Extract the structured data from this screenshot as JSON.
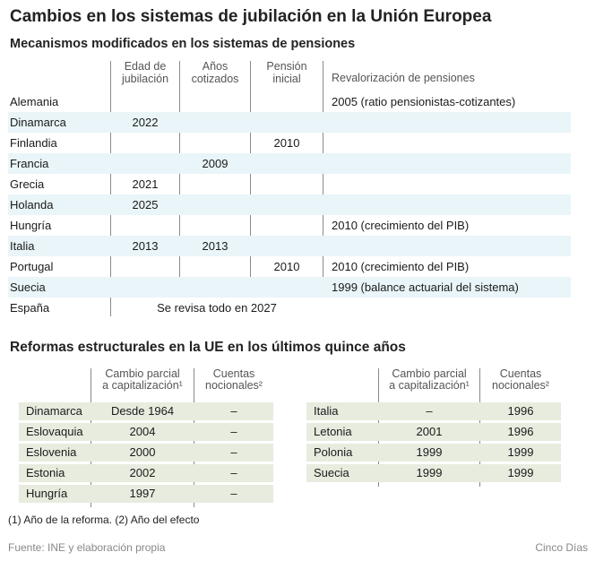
{
  "title": "Cambios en los sistemas de jubilación en la Unión Europea",
  "section1": {
    "title": "Mecanismos modificados en los sistemas de pensiones",
    "headers": {
      "edad": "Edad de\njubilación",
      "anos": "Años\ncotizados",
      "pension": "Pensión\ninicial",
      "reval": "Revalorización de pensiones"
    },
    "rows": [
      {
        "country": "Alemania",
        "edad": "",
        "anos": "",
        "pension": "",
        "reval": "2005 (ratio pensionistas-cotizantes)"
      },
      {
        "country": "Dinamarca",
        "edad": "2022",
        "anos": "",
        "pension": "",
        "reval": ""
      },
      {
        "country": "Finlandia",
        "edad": "",
        "anos": "",
        "pension": "2010",
        "reval": ""
      },
      {
        "country": "Francia",
        "edad": "",
        "anos": "2009",
        "pension": "",
        "reval": ""
      },
      {
        "country": "Grecia",
        "edad": "2021",
        "anos": "",
        "pension": "",
        "reval": ""
      },
      {
        "country": "Holanda",
        "edad": "2025",
        "anos": "",
        "pension": "",
        "reval": ""
      },
      {
        "country": "Hungría",
        "edad": "",
        "anos": "",
        "pension": "",
        "reval": "2010 (crecimiento del PIB)"
      },
      {
        "country": "Italia",
        "edad": "2013",
        "anos": "2013",
        "pension": "",
        "reval": ""
      },
      {
        "country": "Portugal",
        "edad": "",
        "anos": "",
        "pension": "2010",
        "reval": "2010 (crecimiento del PIB)"
      },
      {
        "country": "Suecia",
        "edad": "",
        "anos": "",
        "pension": "",
        "reval": "1999 (balance actuarial del sistema)"
      }
    ],
    "spain": {
      "country": "España",
      "note": "Se revisa todo en 2027"
    }
  },
  "section2": {
    "title": "Reformas estructurales en la UE en los últimos quince años",
    "headers": {
      "capitalizacion": "Cambio parcial\na capitalización¹",
      "nocionales": "Cuentas\nnocionales²"
    },
    "left": [
      {
        "country": "Dinamarca",
        "cap": "Desde 1964",
        "noc": "–"
      },
      {
        "country": "Eslovaquia",
        "cap": "2004",
        "noc": "–"
      },
      {
        "country": "Eslovenia",
        "cap": "2000",
        "noc": "–"
      },
      {
        "country": "Estonia",
        "cap": "2002",
        "noc": "–"
      },
      {
        "country": "Hungría",
        "cap": "1997",
        "noc": "–"
      }
    ],
    "right": [
      {
        "country": "Italia",
        "cap": "–",
        "noc": "1996"
      },
      {
        "country": "Letonia",
        "cap": "2001",
        "noc": "1996"
      },
      {
        "country": "Polonia",
        "cap": "1999",
        "noc": "1999"
      },
      {
        "country": "Suecia",
        "cap": "1999",
        "noc": "1999"
      }
    ]
  },
  "footnote": "(1) Año de la reforma. (2) Año del efecto",
  "source": "Fuente: INE y elaboración propia",
  "brand": "Cinco Días",
  "colors": {
    "stripe_blue": "#e9f5f8",
    "row_green": "#e7ecdf",
    "muted_text": "#888888"
  }
}
